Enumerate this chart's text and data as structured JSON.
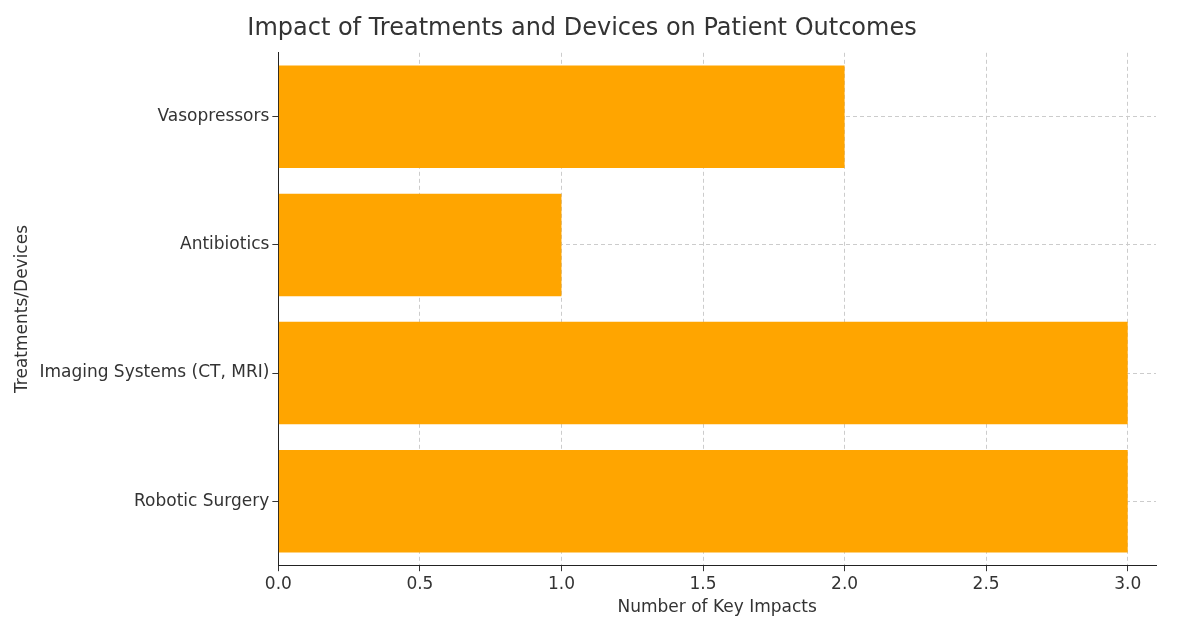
{
  "chart_data": {
    "type": "bar",
    "orientation": "horizontal",
    "title": "Impact of Treatments and Devices on Patient Outcomes",
    "xlabel": "Number of Key Impacts",
    "ylabel": "Treatments/Devices",
    "categories": [
      "Vasopressors",
      "Antibiotics",
      "Imaging Systems (CT, MRI)",
      "Robotic Surgery"
    ],
    "values": [
      2,
      1,
      3,
      3
    ],
    "color": "#ffa500",
    "xlim": [
      0,
      3.1
    ],
    "xticks": [
      {
        "value": 0,
        "label": "0.0"
      },
      {
        "value": 0.5,
        "label": "0.5"
      },
      {
        "value": 1,
        "label": "1.0"
      },
      {
        "value": 1.5,
        "label": "1.5"
      },
      {
        "value": 2,
        "label": "2.0"
      },
      {
        "value": 2.5,
        "label": "2.5"
      },
      {
        "value": 3,
        "label": "3.0"
      }
    ],
    "grid": true
  }
}
